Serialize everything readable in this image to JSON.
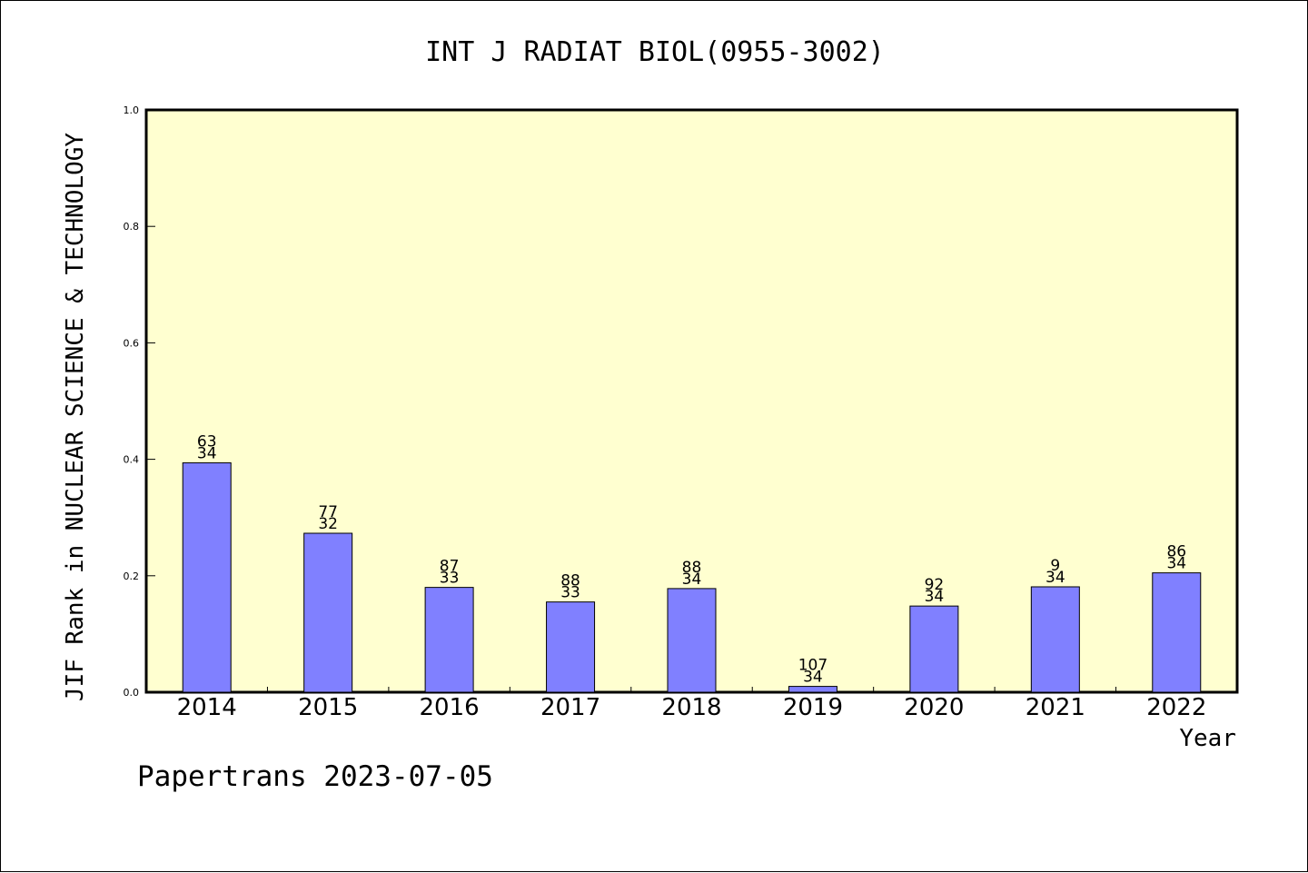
{
  "colors": {
    "plot_background": "#ffffd0",
    "bar_fill": "#8080ff",
    "bar_stroke": "#000000",
    "axis": "#000000"
  },
  "footer": {
    "text": "Papertrans 2023-07-05"
  },
  "chart_data": {
    "type": "bar",
    "title": "INT J RADIAT BIOL(0955-3002)",
    "xlabel": "Year",
    "ylabel": "JIF Rank in NUCLEAR SCIENCE & TECHNOLOGY",
    "ylim": [
      0,
      1.0
    ],
    "yticks": [
      "0.0",
      "0.2",
      "0.4",
      "0.6",
      "0.8",
      "1.0"
    ],
    "grid": false,
    "categories": [
      "2014",
      "2015",
      "2016",
      "2017",
      "2018",
      "2019",
      "2020",
      "2021",
      "2022"
    ],
    "values": [
      0.394,
      0.273,
      0.18,
      0.155,
      0.178,
      0.01,
      0.148,
      0.181,
      0.205
    ],
    "labels_top": [
      "63",
      "77",
      "87",
      "88",
      "88",
      "107",
      "92",
      "9",
      "86"
    ],
    "labels_bottom": [
      "34",
      "32",
      "33",
      "33",
      "34",
      "34",
      "34",
      "34",
      "34"
    ]
  }
}
